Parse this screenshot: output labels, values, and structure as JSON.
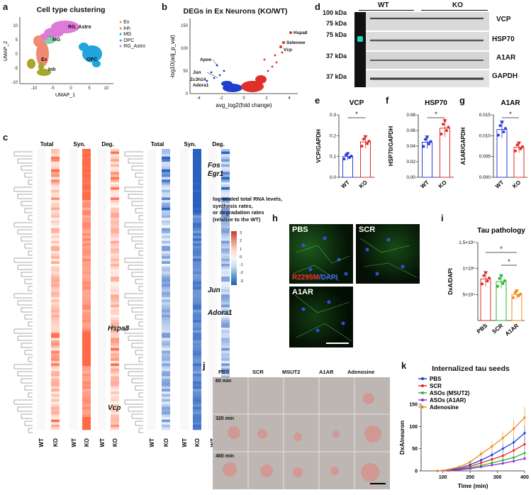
{
  "panel_letters": {
    "a": "a",
    "b": "b",
    "c": "c",
    "d": "d",
    "e": "e",
    "f": "f",
    "g": "g",
    "h": "h",
    "i": "i",
    "j": "j",
    "k": "k"
  },
  "panel_a": {
    "title": "Cell type clustering",
    "xlabel": "UMAP_1",
    "ylabel": "UMAP_2",
    "xticks": [
      "-10",
      "-5",
      "0",
      "5",
      "10"
    ],
    "yticks": [
      "10",
      "5",
      "0",
      "-5",
      "-10"
    ],
    "cluster_labels": [
      "RG_Astro",
      "MG",
      "Ex",
      "Inh",
      "OPC"
    ],
    "legend": [
      {
        "label": "Ex",
        "color": "#f08a74"
      },
      {
        "label": "Inh",
        "color": "#a9a52a"
      },
      {
        "label": "MG",
        "color": "#2db37c"
      },
      {
        "label": "OPC",
        "color": "#1fa4dc"
      },
      {
        "label": "RG_Astro",
        "color": "#e07ad8"
      }
    ]
  },
  "panel_b": {
    "title": "DEGs in Ex Neurons (KO/WT)",
    "xlabel": "avg_log2(fold change)",
    "ylabel": "-log10(adj_p_val)",
    "xticks": [
      "-4",
      "-2",
      "0",
      "2",
      "4"
    ],
    "yticks": [
      "0",
      "50",
      "100",
      "150"
    ],
    "labels": [
      "Hspa8",
      "Selenow",
      "Vcp",
      "Apoe",
      "Jun",
      "Zc3h14",
      "Adora1"
    ]
  },
  "panel_c": {
    "col_headers": [
      "Total",
      "Syn.",
      "Deg."
    ],
    "x_labels": [
      "WT",
      "KO",
      "WT",
      "KO",
      "WT",
      "KO"
    ],
    "left_genes": [
      "Hspa8",
      "Vcp"
    ],
    "right_genes": [
      "Fos",
      "Egr1",
      "Jun",
      "Adora1"
    ],
    "legend_text": [
      "log-scaled total RNA levels,",
      "synthesis rates,",
      "or degradation rates",
      "(relative to the WT)"
    ],
    "scale_ticks": [
      "3",
      "2",
      "1",
      "0",
      "-1",
      "-2",
      "-3"
    ]
  },
  "panel_d": {
    "groups": [
      "WT",
      "KO"
    ],
    "kda": [
      "100 kDa",
      "75 kDa",
      "75 kDa",
      "37 kDa",
      "37 kDa"
    ],
    "proteins": [
      "VCP",
      "HSP70",
      "A1AR",
      "GAPDH"
    ]
  },
  "panel_e": {
    "title": "VCP",
    "ylabel": "VCP/GAPDH",
    "yticks": [
      "0.0",
      "0.1",
      "0.2",
      "0.3"
    ],
    "groups": [
      "WT",
      "KO"
    ],
    "sig": "*"
  },
  "panel_f": {
    "title": "HSP70",
    "ylabel": "HSP70/GAPDH",
    "yticks": [
      "0.00",
      "0.02",
      "0.04",
      "0.06",
      "0.08"
    ],
    "groups": [
      "WT",
      "KO"
    ],
    "sig": "*"
  },
  "panel_g": {
    "title": "A1AR",
    "ylabel": "A1AR/GAPDH",
    "yticks": [
      "0.000",
      "0.005",
      "0.010",
      "0.015"
    ],
    "groups": [
      "WT",
      "KO"
    ],
    "sig": "*"
  },
  "panel_h": {
    "labels": [
      "PBS",
      "SCR",
      "A1AR"
    ],
    "stain_red": "R2295M",
    "stain_sep": "/",
    "stain_blue": "DAPI"
  },
  "panel_i": {
    "title": "Tau pathology",
    "ylabel": "DxA/DAPI",
    "yticks": [
      "5×10⁴",
      "1×10⁵",
      "1.5×10⁵"
    ],
    "groups": [
      "PBS",
      "SCR",
      "A1AR"
    ],
    "sig": [
      "*",
      "*"
    ]
  },
  "panel_j": {
    "columns": [
      "PBS",
      "SCR",
      "MSUT2",
      "A1AR",
      "Adenosine"
    ],
    "rows": [
      "60 min",
      "320 min",
      "460 min"
    ]
  },
  "panel_k": {
    "title": "Internalized tau seeds",
    "ylabel": "DxA/neuron",
    "xlabel": "Time (min)",
    "xticks": [
      "100",
      "200",
      "300",
      "400"
    ],
    "yticks": [
      "0",
      "50",
      "100",
      "150"
    ],
    "legend": [
      {
        "label": "PBS",
        "color": "#1d3fe0"
      },
      {
        "label": "SCR",
        "color": "#e32b2b"
      },
      {
        "label": "ASOs (MSUT2)",
        "color": "#2cb52c"
      },
      {
        "label": "ASOs (A1AR)",
        "color": "#9b2bd8"
      },
      {
        "label": "Adenosine",
        "color": "#f08a1c"
      }
    ]
  },
  "chart_data": [
    {
      "type": "bar",
      "panel": "e",
      "title": "VCP",
      "categories": [
        "WT",
        "KO"
      ],
      "values": [
        0.1,
        0.17
      ],
      "ylabel": "VCP/GAPDH",
      "ylim": [
        0,
        0.3
      ]
    },
    {
      "type": "bar",
      "panel": "f",
      "title": "HSP70",
      "categories": [
        "WT",
        "KO"
      ],
      "values": [
        0.045,
        0.063
      ],
      "ylabel": "HSP70/GAPDH",
      "ylim": [
        0,
        0.08
      ]
    },
    {
      "type": "bar",
      "panel": "g",
      "title": "A1AR",
      "categories": [
        "WT",
        "KO"
      ],
      "values": [
        0.0115,
        0.0072
      ],
      "ylabel": "A1AR/GAPDH",
      "ylim": [
        0,
        0.015
      ]
    },
    {
      "type": "bar",
      "panel": "i",
      "title": "Tau pathology",
      "categories": [
        "PBS",
        "SCR",
        "A1AR"
      ],
      "values": [
        80000,
        75000,
        50000
      ],
      "ylabel": "DxA/DAPI",
      "ylim": [
        0,
        150000
      ]
    },
    {
      "type": "line",
      "panel": "k",
      "title": "Internalized tau seeds",
      "xlabel": "Time (min)",
      "ylabel": "DxA/neuron",
      "xlim": [
        20,
        400
      ],
      "ylim": [
        0,
        150
      ],
      "x": [
        80,
        120,
        160,
        200,
        240,
        280,
        320,
        360,
        400
      ],
      "series": [
        {
          "name": "PBS",
          "values": [
            0,
            2,
            6,
            14,
            24,
            36,
            50,
            64,
            85
          ]
        },
        {
          "name": "SCR",
          "values": [
            0,
            1,
            4,
            10,
            18,
            26,
            34,
            46,
            60
          ]
        },
        {
          "name": "ASOs (MSUT2)",
          "values": [
            0,
            1,
            3,
            7,
            12,
            18,
            24,
            30,
            40
          ]
        },
        {
          "name": "ASOs (A1AR)",
          "values": [
            0,
            1,
            2,
            5,
            9,
            13,
            17,
            22,
            28
          ]
        },
        {
          "name": "Adenosine",
          "values": [
            0,
            3,
            9,
            20,
            38,
            55,
            74,
            95,
            120
          ]
        }
      ]
    }
  ]
}
